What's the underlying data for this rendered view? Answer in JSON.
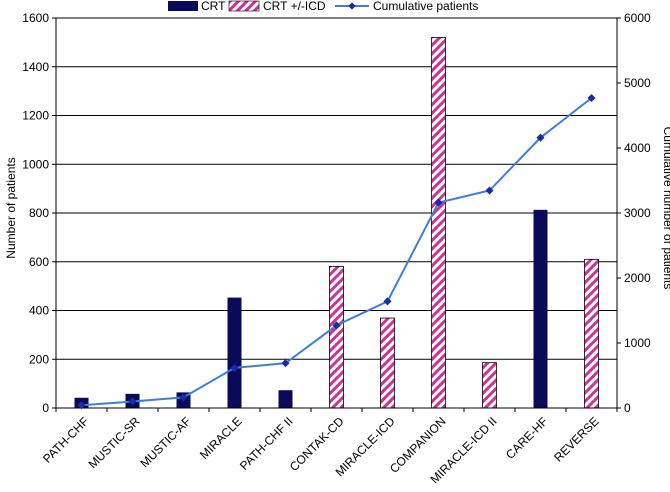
{
  "chart_data": {
    "type": "bar",
    "categories": [
      "PATH-CHF",
      "MUSTIC-SR",
      "MUSTIC-AF",
      "MIRACLE",
      "PATH-CHF II",
      "CONTAK-CD",
      "MIRACLE-ICD",
      "COMPANION",
      "MIRACLE-ICD II",
      "CARE-HF",
      "REVERSE"
    ],
    "series": [
      {
        "name": "CRT",
        "kind": "bar",
        "color": "#0a0a5a",
        "values": [
          42,
          58,
          64,
          453,
          73,
          null,
          null,
          null,
          null,
          813,
          null
        ]
      },
      {
        "name": "CRT +/-ICD",
        "kind": "bar",
        "color": "#cc3399",
        "pattern": "diagonal-hatch",
        "values": [
          null,
          null,
          null,
          null,
          null,
          581,
          369,
          1520,
          186,
          null,
          610
        ]
      },
      {
        "name": "Cumulative patients",
        "kind": "line",
        "axis": "right",
        "color": "#3a7fe0",
        "marker": "diamond",
        "values": [
          42,
          100,
          164,
          617,
          690,
          1271,
          1640,
          3160,
          3346,
          4159,
          4769
        ]
      }
    ],
    "xlabel": "",
    "ylabel": "Number of patients",
    "y2label": "Cumulative number of patients",
    "ylim": [
      0,
      1600
    ],
    "y2lim": [
      0,
      6000
    ],
    "yticks": [
      0,
      200,
      400,
      600,
      800,
      1000,
      1200,
      1400,
      1600
    ],
    "y2ticks": [
      0,
      1000,
      2000,
      3000,
      4000,
      5000,
      6000
    ],
    "grid": true,
    "legend": "top-center"
  }
}
